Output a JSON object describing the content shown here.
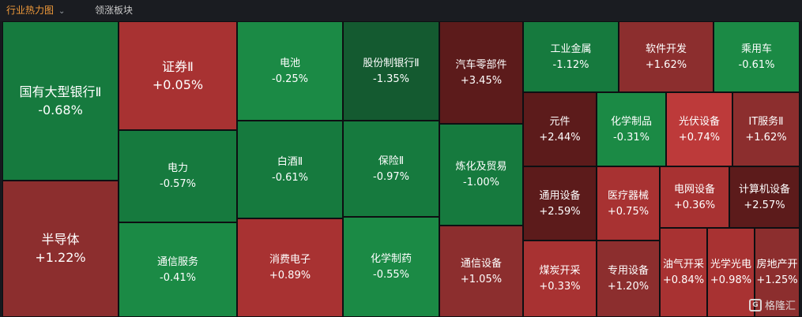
{
  "header": {
    "tab_industry": "行业热力图",
    "tab_industry_icon": "chevron-down-icon",
    "tab_leaders": "领涨板块"
  },
  "tiles": {
    "guoyou": {
      "name": "国有大型银行Ⅱ",
      "pct": "-0.68%"
    },
    "bandaoti": {
      "name": "半导体",
      "pct": "+1.22%"
    },
    "zhengquan": {
      "name": "证券Ⅱ",
      "pct": "+0.05%"
    },
    "dianli": {
      "name": "电力",
      "pct": "-0.57%"
    },
    "tongxinfuwu": {
      "name": "通信服务",
      "pct": "-0.41%"
    },
    "dianchi": {
      "name": "电池",
      "pct": "-0.25%"
    },
    "baijiu": {
      "name": "白酒Ⅱ",
      "pct": "-0.61%"
    },
    "xiaofeidianzi": {
      "name": "消费电子",
      "pct": "+0.89%"
    },
    "gufenzhi": {
      "name": "股份制银行Ⅱ",
      "pct": "-1.35%"
    },
    "baoxian": {
      "name": "保险Ⅱ",
      "pct": "-0.97%"
    },
    "huaxuezhiyao": {
      "name": "化学制药",
      "pct": "-0.55%"
    },
    "qiche": {
      "name": "汽车零部件",
      "pct": "+3.45%"
    },
    "lianhua": {
      "name": "炼化及贸易",
      "pct": "-1.00%"
    },
    "tongxinshebei": {
      "name": "通信设备",
      "pct": "+1.05%"
    },
    "gongyejinshu": {
      "name": "工业金属",
      "pct": "-1.12%"
    },
    "ruanjian": {
      "name": "软件开发",
      "pct": "+1.62%"
    },
    "chengyongche": {
      "name": "乘用车",
      "pct": "-0.61%"
    },
    "yuanjian": {
      "name": "元件",
      "pct": "+2.44%"
    },
    "huaxuezhipin": {
      "name": "化学制品",
      "pct": "-0.31%"
    },
    "guangfu": {
      "name": "光伏设备",
      "pct": "+0.74%"
    },
    "itfuwu": {
      "name": "IT服务Ⅱ",
      "pct": "+1.62%"
    },
    "tongyong": {
      "name": "通用设备",
      "pct": "+2.59%"
    },
    "yiliao": {
      "name": "医疗器械",
      "pct": "+0.75%"
    },
    "dianwang": {
      "name": "电网设备",
      "pct": "+0.36%"
    },
    "jisuanji": {
      "name": "计算机设备",
      "pct": "+2.57%"
    },
    "meitan": {
      "name": "煤炭开采",
      "pct": "+0.33%"
    },
    "zhuanyong": {
      "name": "专用设备",
      "pct": "+1.20%"
    },
    "youqi": {
      "name": "油气开采",
      "pct": "+0.84%"
    },
    "guangxue": {
      "name": "光学光电",
      "pct": "+0.98%"
    },
    "fangdichan": {
      "name": "房地产开",
      "pct": "+1.25%"
    }
  },
  "watermark": {
    "text": "格隆汇",
    "icon": "gelonghui-logo-icon"
  },
  "colors": {
    "up": "#a83232",
    "down": "#167a3e",
    "active_tab": "#f29b3a"
  }
}
